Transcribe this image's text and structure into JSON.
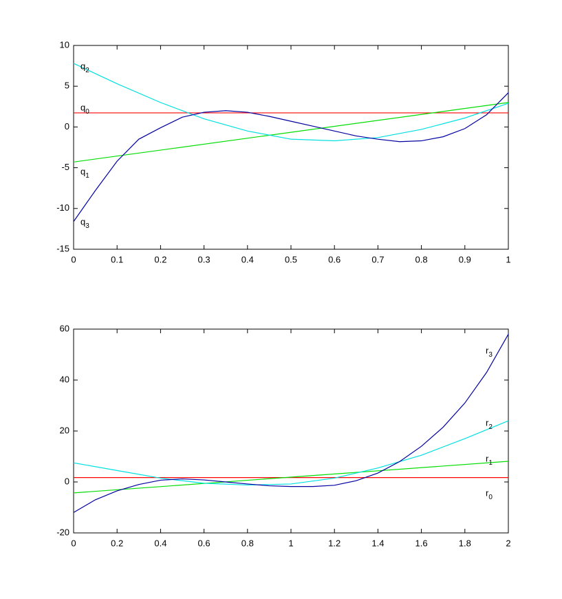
{
  "chart_data": [
    {
      "type": "line",
      "xlim": [
        0,
        1
      ],
      "ylim": [
        -15,
        10
      ],
      "xticks": [
        0,
        0.1,
        0.2,
        0.3,
        0.4,
        0.5,
        0.6,
        0.7,
        0.8,
        0.9,
        1
      ],
      "yticks": [
        -15,
        -10,
        -5,
        0,
        5,
        10
      ],
      "series": [
        {
          "name": "q0",
          "color": "#ff0000",
          "x": [
            0,
            1
          ],
          "values": [
            1.73,
            1.73
          ]
        },
        {
          "name": "q1",
          "color": "#00dd00",
          "x": [
            0,
            1
          ],
          "values": [
            -4.3,
            3.0
          ]
        },
        {
          "name": "q2",
          "color": "#00e0e0",
          "x": [
            0,
            0.1,
            0.2,
            0.3,
            0.4,
            0.5,
            0.6,
            0.7,
            0.8,
            0.9,
            1
          ],
          "values": [
            7.8,
            5.3,
            3.0,
            1.0,
            -0.5,
            -1.5,
            -1.7,
            -1.3,
            -0.3,
            1.1,
            2.9
          ]
        },
        {
          "name": "q3",
          "color": "#0000a0",
          "x": [
            0,
            0.05,
            0.1,
            0.15,
            0.2,
            0.25,
            0.3,
            0.35,
            0.4,
            0.45,
            0.5,
            0.55,
            0.6,
            0.65,
            0.7,
            0.75,
            0.8,
            0.85,
            0.9,
            0.95,
            1
          ],
          "values": [
            -11.6,
            -7.8,
            -4.2,
            -1.5,
            -0.1,
            1.2,
            1.8,
            2.0,
            1.8,
            1.3,
            0.7,
            0.1,
            -0.5,
            -1.1,
            -1.5,
            -1.8,
            -1.7,
            -1.2,
            -0.2,
            1.5,
            4.2
          ]
        }
      ]
    },
    {
      "type": "line",
      "xlim": [
        0,
        2
      ],
      "ylim": [
        -20,
        60
      ],
      "xticks": [
        0,
        0.2,
        0.4,
        0.6,
        0.8,
        1,
        1.2,
        1.4,
        1.6,
        1.8,
        2
      ],
      "yticks": [
        -20,
        0,
        20,
        40,
        60
      ],
      "series": [
        {
          "name": "r0",
          "color": "#ff0000",
          "x": [
            0,
            2
          ],
          "values": [
            1.73,
            1.73
          ]
        },
        {
          "name": "r1",
          "color": "#00dd00",
          "x": [
            0,
            2
          ],
          "values": [
            -4.3,
            8.1
          ]
        },
        {
          "name": "r2",
          "color": "#00e0e0",
          "x": [
            0,
            0.2,
            0.4,
            0.6,
            0.8,
            1,
            1.2,
            1.4,
            1.6,
            1.8,
            2
          ],
          "values": [
            7.5,
            4.5,
            1.5,
            -0.5,
            -1.2,
            -0.8,
            1.5,
            5.5,
            10.5,
            17,
            24
          ]
        },
        {
          "name": "r3",
          "color": "#0000a0",
          "x": [
            0,
            0.1,
            0.2,
            0.3,
            0.4,
            0.5,
            0.6,
            0.7,
            0.8,
            0.9,
            1,
            1.1,
            1.2,
            1.3,
            1.4,
            1.5,
            1.6,
            1.7,
            1.8,
            1.9,
            2
          ],
          "values": [
            -12,
            -7,
            -3.5,
            -1,
            0.7,
            1.2,
            0.8,
            0,
            -0.8,
            -1.5,
            -1.8,
            -1.8,
            -1.3,
            0.5,
            3.5,
            8,
            14,
            21.5,
            31,
            43,
            58
          ]
        }
      ]
    }
  ]
}
